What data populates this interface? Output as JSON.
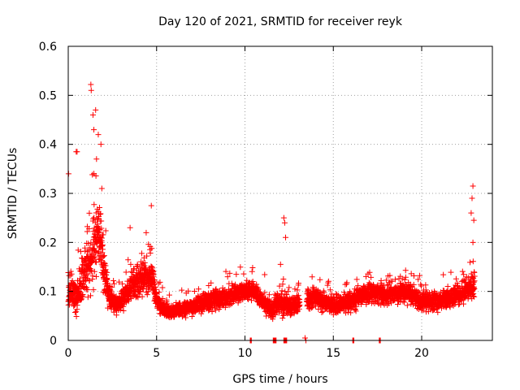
{
  "chart_data": {
    "type": "scatter",
    "title": "Day 120 of 2021, SRMTID for receiver reyk",
    "xlabel": "GPS time / hours",
    "ylabel": "SRMTID / TECUs",
    "xlim": [
      0,
      24
    ],
    "ylim": [
      0,
      0.6
    ],
    "x_ticks": [
      0,
      5,
      10,
      15,
      20
    ],
    "x_tick_labels": [
      "0",
      "5",
      "10",
      "15",
      "20"
    ],
    "y_ticks": [
      0,
      0.1,
      0.2,
      0.3,
      0.4,
      0.5,
      0.6
    ],
    "y_tick_labels": [
      "0",
      "0.1",
      "0.2",
      "0.3",
      "0.4",
      "0.5",
      "0.6"
    ],
    "grid": true,
    "marker": "plus",
    "color": "#ff0000",
    "series": [
      {
        "name": "SRMTID",
        "profile": [
          [
            0.0,
            0.09,
            0.04
          ],
          [
            0.25,
            0.1,
            0.05
          ],
          [
            0.5,
            0.09,
            0.05
          ],
          [
            0.75,
            0.12,
            0.07
          ],
          [
            1.0,
            0.14,
            0.08
          ],
          [
            1.25,
            0.16,
            0.09
          ],
          [
            1.5,
            0.2,
            0.1
          ],
          [
            1.75,
            0.22,
            0.09
          ],
          [
            2.0,
            0.15,
            0.07
          ],
          [
            2.25,
            0.1,
            0.04
          ],
          [
            2.5,
            0.08,
            0.03
          ],
          [
            2.75,
            0.07,
            0.03
          ],
          [
            3.0,
            0.08,
            0.03
          ],
          [
            3.5,
            0.11,
            0.04
          ],
          [
            4.0,
            0.12,
            0.05
          ],
          [
            4.5,
            0.13,
            0.05
          ],
          [
            4.75,
            0.13,
            0.05
          ],
          [
            5.0,
            0.08,
            0.03
          ],
          [
            5.5,
            0.06,
            0.02
          ],
          [
            6.0,
            0.06,
            0.02
          ],
          [
            7.0,
            0.07,
            0.025
          ],
          [
            8.0,
            0.08,
            0.03
          ],
          [
            9.0,
            0.09,
            0.03
          ],
          [
            10.0,
            0.1,
            0.03
          ],
          [
            10.5,
            0.1,
            0.035
          ],
          [
            11.0,
            0.08,
            0.03
          ],
          [
            11.5,
            0.06,
            0.025
          ],
          [
            12.0,
            0.08,
            0.04
          ],
          [
            12.5,
            0.07,
            0.03
          ],
          [
            13.5,
            0.08,
            0.03
          ],
          [
            14.0,
            0.09,
            0.03
          ],
          [
            15.0,
            0.07,
            0.025
          ],
          [
            16.0,
            0.08,
            0.03
          ],
          [
            17.0,
            0.1,
            0.035
          ],
          [
            18.0,
            0.09,
            0.03
          ],
          [
            19.0,
            0.1,
            0.03
          ],
          [
            20.0,
            0.08,
            0.03
          ],
          [
            21.0,
            0.08,
            0.03
          ],
          [
            22.0,
            0.09,
            0.03
          ],
          [
            22.5,
            0.1,
            0.035
          ],
          [
            23.0,
            0.11,
            0.05
          ]
        ],
        "gaps": [
          [
            3.6,
            3.62
          ],
          [
            13.1,
            13.5
          ]
        ],
        "outliers": [
          [
            0.02,
            0.34
          ],
          [
            0.45,
            0.385
          ],
          [
            0.5,
            0.385
          ],
          [
            1.28,
            0.522
          ],
          [
            1.3,
            0.51
          ],
          [
            1.4,
            0.46
          ],
          [
            1.55,
            0.47
          ],
          [
            1.7,
            0.42
          ],
          [
            1.45,
            0.43
          ],
          [
            1.85,
            0.4
          ],
          [
            1.6,
            0.37
          ],
          [
            1.9,
            0.31
          ],
          [
            4.7,
            0.275
          ],
          [
            3.5,
            0.23
          ],
          [
            12.2,
            0.25
          ],
          [
            12.25,
            0.24
          ],
          [
            12.3,
            0.21
          ],
          [
            22.9,
            0.315
          ],
          [
            22.85,
            0.29
          ],
          [
            22.8,
            0.26
          ],
          [
            22.95,
            0.245
          ],
          [
            22.9,
            0.2
          ],
          [
            13.4,
            0.005
          ],
          [
            13.45,
            0.0
          ]
        ],
        "zero_markers": [
          10.3,
          11.6,
          11.7,
          12.2,
          12.3,
          16.1,
          17.6
        ]
      }
    ]
  }
}
